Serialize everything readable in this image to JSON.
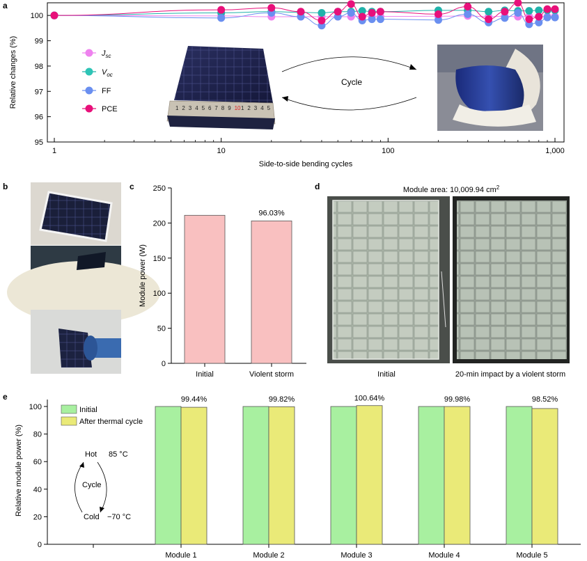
{
  "panels": {
    "a": {
      "label": "a",
      "chart_data": {
        "type": "line",
        "x_scale": "log",
        "xlabel": "Side-to-side bending cycles",
        "ylabel": "Relative changes (%)",
        "ylim": [
          95,
          100.5
        ],
        "xlim": [
          1,
          1000
        ],
        "yticks": [
          "95",
          "96",
          "97",
          "98",
          "99",
          "100"
        ],
        "xticks": [
          "1",
          "10",
          "100",
          "1,000"
        ],
        "x": [
          1,
          10,
          20,
          30,
          40,
          50,
          60,
          70,
          80,
          90,
          200,
          300,
          400,
          500,
          600,
          700,
          800,
          900,
          1000
        ],
        "series": [
          {
            "name": "Jsc",
            "color": "#ee82ee",
            "values": [
              100,
              99.98,
              99.95,
              99.95,
              99.95,
              99.95,
              99.95,
              99.97,
              99.95,
              99.96,
              99.97,
              99.98,
              99.95,
              99.97,
              99.95,
              99.96,
              99.96,
              99.96,
              99.96
            ]
          },
          {
            "name": "Voc",
            "color": "#20b2aa",
            "values": [
              100,
              100.1,
              100.15,
              100.12,
              100.1,
              100.15,
              100.15,
              100.18,
              100.15,
              100.15,
              100.2,
              100.2,
              100.15,
              100.2,
              100.18,
              100.18,
              100.2,
              100.2,
              100.2
            ]
          },
          {
            "name": "FF",
            "color": "#6a8ff0",
            "values": [
              100,
              99.9,
              100.1,
              99.95,
              99.6,
              99.95,
              100.1,
              99.8,
              99.85,
              99.85,
              99.82,
              100.05,
              99.72,
              99.9,
              100.1,
              99.65,
              99.72,
              99.92,
              99.92
            ]
          },
          {
            "name": "PCE",
            "color": "#e8107a",
            "values": [
              100,
              100.22,
              100.3,
              100.15,
              99.8,
              100.15,
              100.45,
              99.95,
              100.1,
              100.15,
              100.05,
              100.35,
              99.85,
              100.15,
              100.5,
              99.85,
              99.95,
              100.25,
              100.25
            ]
          }
        ],
        "legend": [
          "Jsc",
          "Voc",
          "FF",
          "PCE"
        ],
        "legend_position": "left-center"
      },
      "legend_items": [
        {
          "main": "J",
          "sub": "sc"
        },
        {
          "main": "V",
          "sub": "oc"
        },
        {
          "main": "FF",
          "sub": ""
        },
        {
          "main": "PCE",
          "sub": ""
        }
      ],
      "inset_label": "Cycle",
      "ruler_numbers": [
        "1",
        "2",
        "3",
        "4",
        "5",
        "6",
        "7",
        "8",
        "9",
        "10",
        "1",
        "2",
        "3",
        "4",
        "5"
      ],
      "ruler_highlight": "10"
    },
    "b": {
      "label": "b"
    },
    "c": {
      "label": "c",
      "chart_data": {
        "type": "bar",
        "categories": [
          "Initial",
          "Violent storm"
        ],
        "values": [
          211,
          203
        ],
        "ylabel": "Module power (W)",
        "ylim": [
          0,
          250
        ],
        "yticks": [
          "0",
          "50",
          "100",
          "150",
          "200",
          "250"
        ],
        "annotations": [
          "",
          "96.03%"
        ],
        "bar_color": "#f9c0c0"
      }
    },
    "d": {
      "label": "d",
      "title_prefix": "Module area: 10,009.94 cm",
      "title_sup": "2",
      "captions": [
        "Initial",
        "20-min impact by a violent storm"
      ]
    },
    "e": {
      "label": "e",
      "chart_data": {
        "type": "bar",
        "categories": [
          "Module 1",
          "Module 2",
          "Module 3",
          "Module 4",
          "Module 5"
        ],
        "series": [
          {
            "name": "Initial",
            "color": "#a8f0a0",
            "values": [
              100,
              100,
              100,
              100,
              100
            ]
          },
          {
            "name": "After thermal cycle",
            "color": "#eaea78",
            "values": [
              99.44,
              99.82,
              100.64,
              99.98,
              98.52
            ]
          }
        ],
        "annotations": [
          "99.44%",
          "99.82%",
          "100.64%",
          "99.98%",
          "98.52%"
        ],
        "ylabel": "Relative module power (%)",
        "ylim": [
          0,
          100
        ],
        "yticks": [
          "0",
          "20",
          "40",
          "60",
          "80",
          "100"
        ],
        "legend_position": "top-left"
      },
      "cycle_diagram": {
        "hot": "Hot",
        "hot_temp": "85 °C",
        "cycle": "Cycle",
        "cold": "Cold",
        "cold_temp": "−70 °C"
      }
    }
  }
}
